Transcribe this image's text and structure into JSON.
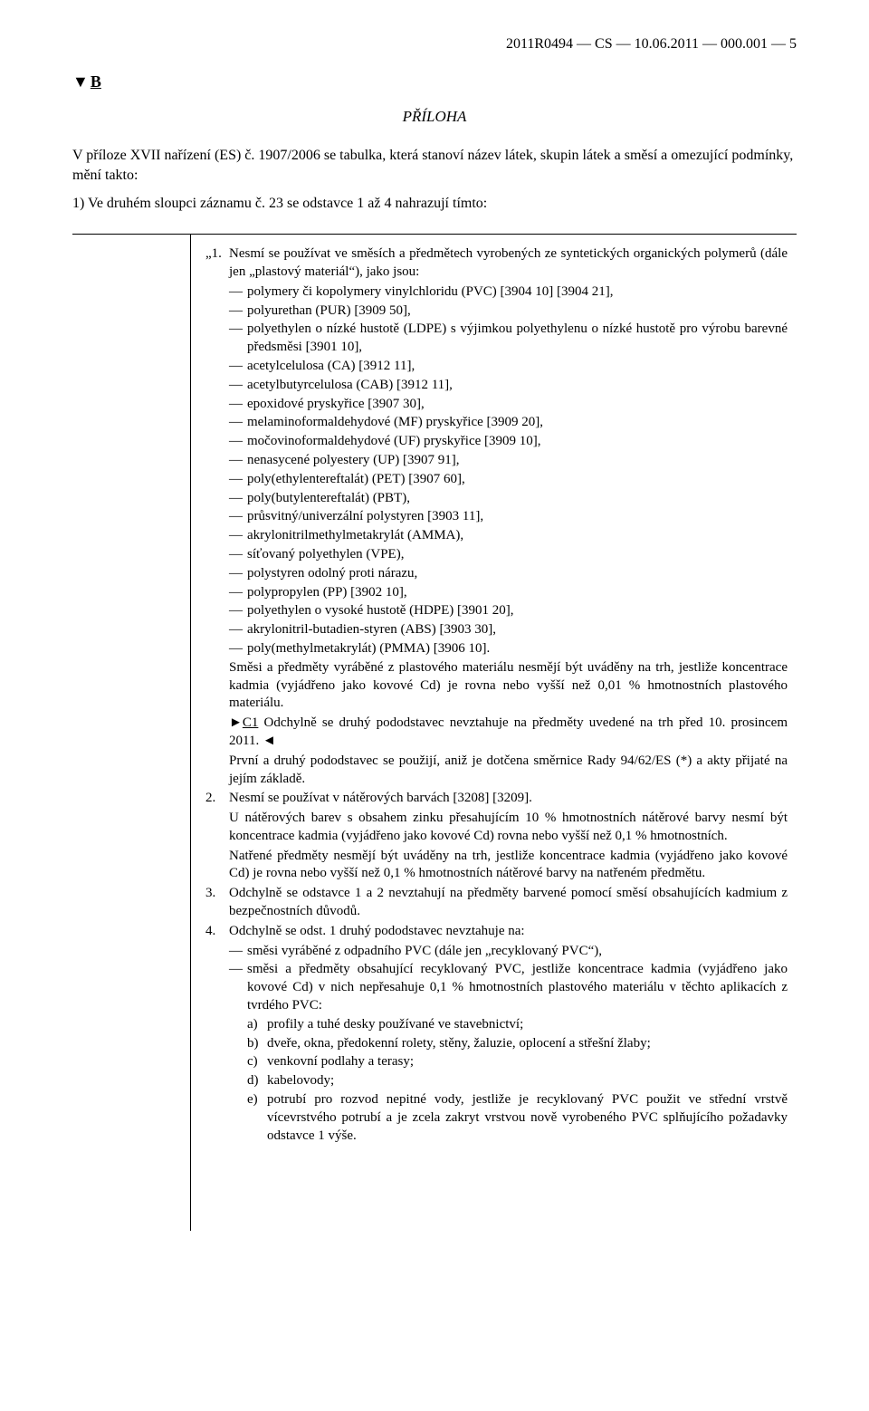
{
  "header": "2011R0494 — CS — 10.06.2011 — 000.001 — 5",
  "marker_triangle": "▼",
  "marker_letter": "B",
  "annex_title": "PŘÍLOHA",
  "intro": "V příloze XVII nařízení (ES) č. 1907/2006 se tabulka, která stanoví název látek, skupin látek a směsí a omezující podmínky, mění takto:",
  "sub_intro": "1) Ve druhém sloupci záznamu č. 23 se odstavce 1 až 4 nahrazují tímto:",
  "n1_lead": "„1.",
  "n1_text": "Nesmí se používat ve směsích a předmětech vyrobených ze syntetických organických polymerů (dále jen „plastový materiál“), jako jsou:",
  "bullets1": [
    "polymery či kopolymery vinylchloridu (PVC) [3904 10] [3904 21],",
    "polyurethan (PUR) [3909 50],",
    "polyethylen o nízké hustotě (LDPE) s výjimkou polyethylenu o nízké hustotě pro výrobu barevné předsměsi [3901 10],",
    "acetylcelulosa (CA) [3912 11],",
    "acetylbutyrcelulosa (CAB) [3912 11],",
    "epoxidové pryskyřice [3907 30],",
    "melaminoformaldehydové (MF) pryskyřice [3909 20],",
    "močovinoformaldehydové (UF) pryskyřice [3909 10],",
    "nenasycené polyestery (UP) [3907 91],",
    "poly(ethylentereftalát) (PET) [3907 60],",
    "poly(butylentereftalát) (PBT),",
    "průsvitný/univerzální polystyren [3903 11],",
    "akrylonitrilmethylmetakrylát (AMMA),",
    "síťovaný polyethylen (VPE),",
    "polystyren odolný proti nárazu,",
    "polypropylen (PP) [3902 10],",
    "polyethylen o vysoké hustotě (HDPE) [3901 20],",
    "akrylonitril-butadien-styren (ABS) [3903 30],",
    "poly(methylmetakrylát) (PMMA) [3906 10]."
  ],
  "p1_a": "Směsi a předměty vyráběné z plastového materiálu nesmějí být uváděny na trh, jestliže koncentrace kadmia (vyjádřeno jako kovové Cd) je rovna nebo vyšší než 0,01 % hmotnostních plastového materiálu.",
  "c1_tri_open": "►",
  "c1_label": "C1",
  "c1_text": " Odchylně se druhý pododstavec nevztahuje na předměty uvedené na trh před 10. prosincem 2011. ",
  "c1_tri_close": "◄",
  "p1_b": "První a druhý pododstavec se použijí, aniž je dotčena směrnice Rady 94/62/ES (*) a akty přijaté na jejím základě.",
  "n2_lead": "2.",
  "n2_text": "Nesmí se používat v nátěrových barvách [3208] [3209].",
  "p2_a": "U nátěrových barev s obsahem zinku přesahujícím 10 % hmotnostních nátěrové barvy nesmí být koncentrace kadmia (vyjádřeno jako kovové Cd) rovna nebo vyšší než 0,1 % hmotnostních.",
  "p2_b": "Natřené předměty nesmějí být uváděny na trh, jestliže koncentrace kadmia (vyjádřeno jako kovové Cd) je rovna nebo vyšší než 0,1 % hmotnostních nátěrové barvy na natřeném předmětu.",
  "n3_lead": "3.",
  "n3_text": "Odchylně se odstavce 1 a 2 nevztahují na předměty barvené pomocí směsí obsahujících kadmium z bezpečnostních důvodů.",
  "n4_lead": "4.",
  "n4_text": "Odchylně se odst. 1 druhý pododstavec nevztahuje na:",
  "bullets4": [
    "směsi vyráběné z odpadního PVC (dále jen „recyklovaný PVC“),",
    "směsi a předměty obsahující recyklovaný PVC, jestliže koncentrace kadmia (vyjádřeno jako kovové Cd) v nich nepřesahuje 0,1 % hmotnostních plastového materiálu v těchto aplikacích z tvrdého PVC:"
  ],
  "sublist4": [
    {
      "l": "a)",
      "t": "profily a tuhé desky používané ve stavebnictví;"
    },
    {
      "l": "b)",
      "t": "dveře, okna, předokenní rolety, stěny, žaluzie, oplocení a střešní žlaby;"
    },
    {
      "l": "c)",
      "t": "venkovní podlahy a terasy;"
    },
    {
      "l": "d)",
      "t": "kabelovody;"
    },
    {
      "l": "e)",
      "t": "potrubí pro rozvod nepitné vody, jestliže je recyklovaný PVC použit ve střední vrstvě vícevrstvého potrubí a je zcela zakryt vrstvou nově vyrobeného PVC splňujícího požadavky odstavce 1 výše."
    }
  ]
}
